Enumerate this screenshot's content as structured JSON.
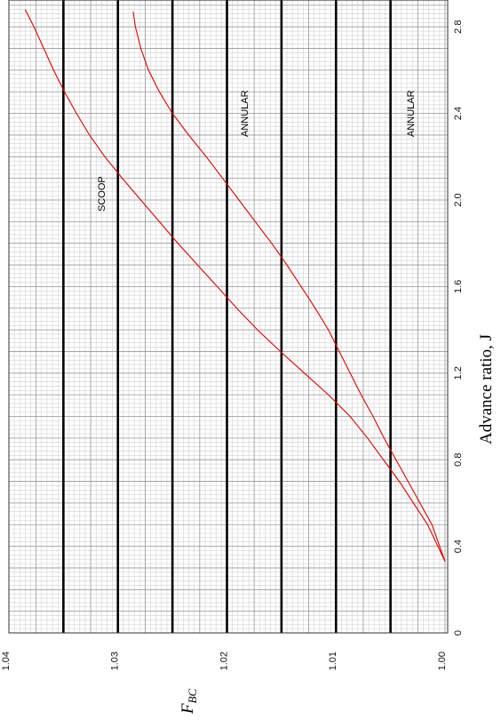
{
  "chart_data": {
    "type": "line",
    "xlabel": "Advance ratio, J",
    "ylabel": "F_BC",
    "xlim": [
      0,
      2.9
    ],
    "ylim": [
      1.0,
      1.04
    ],
    "x_ticks": [
      "0",
      "0.4",
      "0.8",
      "1.2",
      "1.6",
      "2.0",
      "2.4",
      "2.8"
    ],
    "y_ticks": [
      "1.00",
      "1.01",
      "1.02",
      "1.03",
      "1.04"
    ],
    "grid": true,
    "line_color": "#e00000",
    "series": [
      {
        "name": "SCOOP",
        "x": [
          0.33,
          0.5,
          0.7,
          0.9,
          1.0,
          1.1,
          1.2,
          1.3,
          1.4,
          1.5,
          1.6,
          1.7,
          1.8,
          1.9,
          2.0,
          2.1,
          2.2,
          2.3,
          2.4,
          2.5,
          2.6,
          2.7,
          2.8,
          2.88
        ],
        "y": [
          1.0,
          1.0016,
          1.0042,
          1.0071,
          1.0087,
          1.0107,
          1.0129,
          1.0151,
          1.0172,
          1.0191,
          1.0209,
          1.0227,
          1.0245,
          1.0262,
          1.0279,
          1.0296,
          1.0312,
          1.0326,
          1.0338,
          1.0349,
          1.0359,
          1.0368,
          1.0377,
          1.0385
        ]
      },
      {
        "name": "ANNULAR",
        "x": [
          0.33,
          0.5,
          0.7,
          0.9,
          1.0,
          1.1,
          1.2,
          1.3,
          1.4,
          1.5,
          1.6,
          1.7,
          1.8,
          1.9,
          2.0,
          2.1,
          2.2,
          2.3,
          2.4,
          2.5,
          2.6,
          2.7,
          2.8,
          2.87
        ],
        "y": [
          1.0,
          1.0012,
          1.0034,
          1.0056,
          1.0066,
          1.0077,
          1.0087,
          1.0097,
          1.0107,
          1.0119,
          1.0132,
          1.0145,
          1.0159,
          1.0174,
          1.0189,
          1.0204,
          1.0219,
          1.0235,
          1.025,
          1.0262,
          1.0272,
          1.0279,
          1.0284,
          1.0286
        ]
      }
    ],
    "annotations": [
      "SCOOP",
      "ANNULAR",
      "ANNULAR"
    ],
    "emphasized_y": [
      1.005,
      1.01,
      1.015,
      1.02,
      1.025,
      1.03,
      1.035
    ]
  }
}
